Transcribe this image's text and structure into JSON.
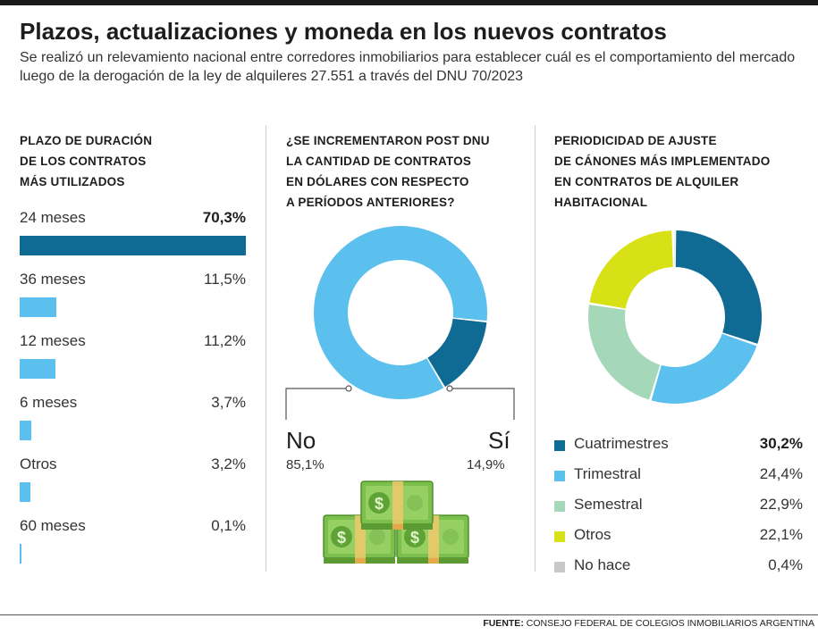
{
  "header": {
    "title": "Plazos, actualizaciones y moneda en los nuevos contratos",
    "subtitle": "Se realizó un relevamiento nacional entre corredores inmobiliarios para establecer cuál es el comportamiento del mercado luego de la derogación de la ley de alquileres 27.551 a través del DNU 70/2023"
  },
  "left": {
    "title_lines": [
      "PLAZO DE DURACIÓN",
      "DE LOS CONTRATOS",
      "MÁS UTILIZADOS"
    ]
  },
  "middle": {
    "title_lines": [
      "¿SE INCREMENTARON POST DNU",
      "LA CANTIDAD DE CONTRATOS",
      "EN DÓLARES CON RESPECTO",
      "A PERÍODOS ANTERIORES?"
    ],
    "no_label": "No",
    "no_value": "85,1%",
    "si_label": "Sí",
    "si_value": "14,9%",
    "money_icon": "money-stack-icon"
  },
  "right": {
    "title_lines": [
      "PERIODICIDAD DE AJUSTE",
      "DE CÁNONES MÁS IMPLEMENTADO",
      "EN CONTRATOS DE ALQUILER",
      "HABITACIONAL"
    ]
  },
  "footer": {
    "source_label": "FUENTE:",
    "source_text": " CONSEJO FEDERAL DE COLEGIOS INMOBILIARIOS ARGENTINA"
  },
  "colors": {
    "dark_blue": "#0f6b94",
    "light_blue": "#5cc0ee",
    "green": "#a5d8b8",
    "yellow": "#d8e016",
    "gray": "#c8c8c8",
    "text": "#222222"
  },
  "chart_data": [
    {
      "type": "bar",
      "orientation": "horizontal",
      "title": "PLAZO DE DURACIÓN DE LOS CONTRATOS MÁS UTILIZADOS",
      "categories": [
        "24 meses",
        "36 meses",
        "12 meses",
        "6 meses",
        "Otros",
        "60 meses"
      ],
      "values": [
        70.3,
        11.5,
        11.2,
        3.7,
        3.2,
        0.1
      ],
      "value_labels": [
        "70,3%",
        "11,5%",
        "11,2%",
        "3,7%",
        "3,2%",
        "0,1%"
      ],
      "unit": "%",
      "xlim": [
        0,
        70.3
      ]
    },
    {
      "type": "pie",
      "variant": "donut",
      "title": "¿SE INCREMENTARON POST DNU LA CANTIDAD DE CONTRATOS EN DÓLARES CON RESPECTO A PERÍODOS ANTERIORES?",
      "categories": [
        "Sí",
        "No"
      ],
      "values": [
        14.9,
        85.1
      ],
      "value_labels": [
        "14,9%",
        "85,1%"
      ],
      "colors": [
        "#0f6b94",
        "#5cc0ee"
      ]
    },
    {
      "type": "pie",
      "variant": "donut",
      "title": "PERIODICIDAD DE AJUSTE DE CÁNONES MÁS IMPLEMENTADO EN CONTRATOS DE ALQUILER HABITACIONAL",
      "categories": [
        "Cuatrimestres",
        "Trimestral",
        "Semestral",
        "Otros",
        "No hace"
      ],
      "values": [
        30.2,
        24.4,
        22.9,
        22.1,
        0.4
      ],
      "value_labels": [
        "30,2%",
        "24,4%",
        "22,9%",
        "22,1%",
        "0,4%"
      ],
      "colors": [
        "#0f6b94",
        "#5cc0ee",
        "#a5d8b8",
        "#d8e016",
        "#c8c8c8"
      ],
      "legend": "bottom"
    }
  ]
}
